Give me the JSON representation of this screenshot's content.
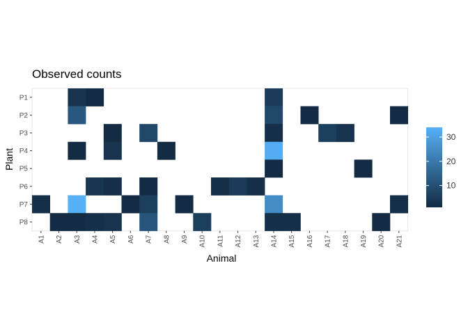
{
  "chart_data": {
    "type": "heatmap",
    "title": "Observed counts",
    "xlabel": "Animal",
    "ylabel": "Plant",
    "x": [
      "A1",
      "A2",
      "A3",
      "A4",
      "A5",
      "A6",
      "A7",
      "A8",
      "A9",
      "A10",
      "A11",
      "A12",
      "A13",
      "A14",
      "A15",
      "A16",
      "A17",
      "A18",
      "A19",
      "A20",
      "A21"
    ],
    "y": [
      "P1",
      "P2",
      "P3",
      "P4",
      "P5",
      "P6",
      "P7",
      "P8"
    ],
    "color_scale": {
      "low": "#132B43",
      "high": "#56B1F7",
      "min": 1,
      "max": 34
    },
    "legend": {
      "ticks": [
        10,
        20,
        30
      ],
      "position": "right"
    },
    "cells": [
      {
        "x": "A3",
        "y": "P1",
        "value": 3
      },
      {
        "x": "A4",
        "y": "P1",
        "value": 1
      },
      {
        "x": "A14",
        "y": "P1",
        "value": 5
      },
      {
        "x": "A3",
        "y": "P2",
        "value": 12
      },
      {
        "x": "A14",
        "y": "P2",
        "value": 8
      },
      {
        "x": "A16",
        "y": "P2",
        "value": 1
      },
      {
        "x": "A21",
        "y": "P2",
        "value": 1
      },
      {
        "x": "A5",
        "y": "P3",
        "value": 1
      },
      {
        "x": "A7",
        "y": "P3",
        "value": 8
      },
      {
        "x": "A14",
        "y": "P3",
        "value": 2
      },
      {
        "x": "A17",
        "y": "P3",
        "value": 6
      },
      {
        "x": "A18",
        "y": "P3",
        "value": 3
      },
      {
        "x": "A3",
        "y": "P4",
        "value": 1
      },
      {
        "x": "A5",
        "y": "P4",
        "value": 3
      },
      {
        "x": "A8",
        "y": "P4",
        "value": 1
      },
      {
        "x": "A14",
        "y": "P4",
        "value": 33
      },
      {
        "x": "A14",
        "y": "P5",
        "value": 1
      },
      {
        "x": "A19",
        "y": "P5",
        "value": 1
      },
      {
        "x": "A4",
        "y": "P6",
        "value": 4
      },
      {
        "x": "A5",
        "y": "P6",
        "value": 2
      },
      {
        "x": "A7",
        "y": "P6",
        "value": 1
      },
      {
        "x": "A11",
        "y": "P6",
        "value": 2
      },
      {
        "x": "A12",
        "y": "P6",
        "value": 5
      },
      {
        "x": "A13",
        "y": "P6",
        "value": 2
      },
      {
        "x": "A1",
        "y": "P7",
        "value": 2
      },
      {
        "x": "A3",
        "y": "P7",
        "value": 34
      },
      {
        "x": "A6",
        "y": "P7",
        "value": 1
      },
      {
        "x": "A7",
        "y": "P7",
        "value": 6
      },
      {
        "x": "A9",
        "y": "P7",
        "value": 1
      },
      {
        "x": "A14",
        "y": "P7",
        "value": 25
      },
      {
        "x": "A21",
        "y": "P7",
        "value": 2
      },
      {
        "x": "A2",
        "y": "P8",
        "value": 1
      },
      {
        "x": "A3",
        "y": "P8",
        "value": 1
      },
      {
        "x": "A4",
        "y": "P8",
        "value": 2
      },
      {
        "x": "A5",
        "y": "P8",
        "value": 3
      },
      {
        "x": "A7",
        "y": "P8",
        "value": 11
      },
      {
        "x": "A10",
        "y": "P8",
        "value": 6
      },
      {
        "x": "A14",
        "y": "P8",
        "value": 2
      },
      {
        "x": "A15",
        "y": "P8",
        "value": 2
      },
      {
        "x": "A20",
        "y": "P8",
        "value": 1
      }
    ]
  }
}
